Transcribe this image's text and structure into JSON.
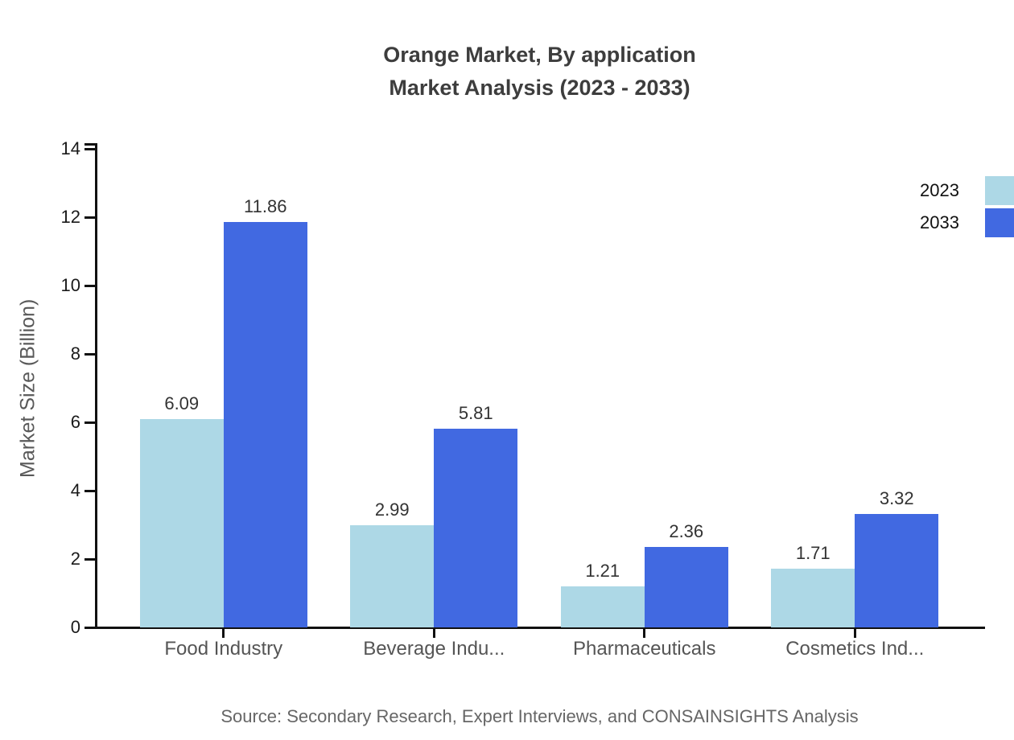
{
  "title": {
    "line1": "Orange Market, By application",
    "line2": "Market Analysis (2023 - 2033)"
  },
  "source": "Source: Secondary Research, Expert Interviews, and CONSAINSIGHTS Analysis",
  "chart_data": {
    "type": "bar",
    "title": "Orange Market, By application Market Analysis (2023 - 2033)",
    "categories": [
      "Food Industry",
      "Beverage Indu...",
      "Pharmaceuticals",
      "Cosmetics Ind..."
    ],
    "series": [
      {
        "name": "2023",
        "color": "#ADD8E6",
        "values": [
          6.09,
          2.99,
          1.21,
          1.71
        ]
      },
      {
        "name": "2033",
        "color": "#4169E1",
        "values": [
          11.86,
          5.81,
          2.36,
          3.32
        ]
      }
    ],
    "xlabel": "",
    "ylabel": "Market Size (Billion)",
    "ylim": [
      0,
      14
    ],
    "yticks": [
      0,
      2,
      4,
      6,
      8,
      10,
      12,
      14
    ],
    "grid": false,
    "legend_position": "top-right",
    "value_labels": true,
    "axis_color": "#111111",
    "value_label_color": "#333333",
    "category_label_color": "#555555"
  }
}
